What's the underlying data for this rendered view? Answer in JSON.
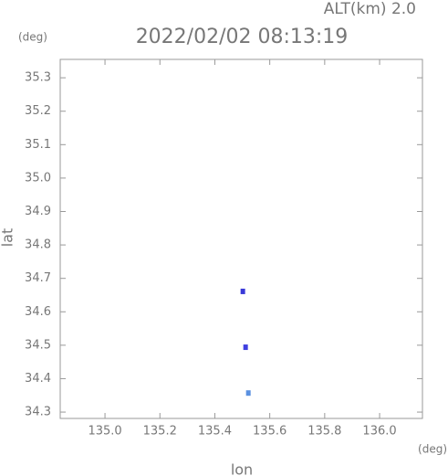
{
  "chart_data": {
    "type": "scatter",
    "title": "2022/02/02 08:13:19",
    "subtitle": "ALT(km) 2.0",
    "y_unit": "(deg)",
    "x_unit": "(deg)",
    "xlabel": "lon",
    "ylabel": "lat",
    "xlim": [
      134.837,
      136.156
    ],
    "ylim": [
      34.281,
      35.355
    ],
    "xticks": [
      {
        "value": 135,
        "label": "135.0"
      },
      135.2,
      135.4,
      135.6,
      135.8,
      {
        "value": 136,
        "label": "136.0"
      }
    ],
    "yticks": [
      34.3,
      34.4,
      34.5,
      34.6,
      34.7,
      34.8,
      34.9,
      {
        "value": 35,
        "label": "35.0"
      },
      35.1,
      35.2,
      35.3
    ],
    "series": [
      {
        "color": "#3a3ad8",
        "x": [
          135.502
        ],
        "values": [
          34.661
        ]
      },
      {
        "color": "#4040e0",
        "x": [
          135.512
        ],
        "values": [
          34.494
        ]
      },
      {
        "color": "#5a90e0",
        "x": [
          135.522
        ],
        "values": [
          34.357
        ]
      }
    ]
  }
}
